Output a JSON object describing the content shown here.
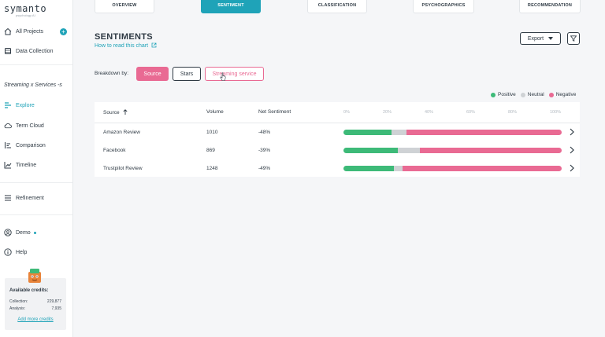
{
  "app": {
    "logo_text": "symanto",
    "logo_sub": "psychology AI"
  },
  "sidebar": {
    "all_projects": "All Projects",
    "data_collection": "Data Collection",
    "project_name": "Streaming x Services -s",
    "items": [
      {
        "label": "Explore",
        "icon": "explore-icon",
        "active": true
      },
      {
        "label": "Term Cloud",
        "icon": "cloud-icon",
        "active": false
      },
      {
        "label": "Comparison",
        "icon": "comparison-icon",
        "active": false
      },
      {
        "label": "Timeline",
        "icon": "timeline-icon",
        "active": false
      },
      {
        "label": "Refinement",
        "icon": "refinement-icon",
        "active": false
      }
    ],
    "user": "Demo",
    "help": "Help",
    "credits": {
      "title": "Available credits:",
      "collection_label": "Collection:",
      "collection_value": "229,877",
      "analysis_label": "Analysis:",
      "analysis_value": "7,935",
      "add_link": "Add more credits"
    }
  },
  "tabs": [
    {
      "label": "OVERVIEW",
      "active": false
    },
    {
      "label": "SENTIMENT",
      "active": true
    },
    {
      "label": "CLASSIFICATION",
      "active": false
    },
    {
      "label": "PSYCHOGRAPHICS",
      "active": false
    },
    {
      "label": "RECOMMENDATION",
      "active": false
    }
  ],
  "main": {
    "title": "SENTIMENTS",
    "help_link": "How to read this chart",
    "export_label": "Export",
    "breakdown_label": "Breakdown by:",
    "breakdown_options": [
      "Source",
      "Stars",
      "Streaming service"
    ],
    "breakdown_selected": "Source"
  },
  "legend": [
    {
      "label": "Positive",
      "color": "#3dba78"
    },
    {
      "label": "Neutral",
      "color": "#cfd2d5"
    },
    {
      "label": "Negative",
      "color": "#e96a93"
    }
  ],
  "table": {
    "columns": [
      "Source",
      "Volume",
      "Net Sentiment"
    ],
    "scale_ticks": [
      "0%",
      "20%",
      "40%",
      "60%",
      "80%",
      "100%"
    ],
    "rows": [
      {
        "source": "Amazon Review",
        "volume": "1010",
        "net": "-48%",
        "positive": 0.22,
        "neutral": 0.07,
        "negative": 0.71
      },
      {
        "source": "Facebook",
        "volume": "869",
        "net": "-39%",
        "positive": 0.25,
        "neutral": 0.1,
        "negative": 0.65
      },
      {
        "source": "Trustpilot Review",
        "volume": "1248",
        "net": "-49%",
        "positive": 0.23,
        "neutral": 0.04,
        "negative": 0.73
      }
    ]
  }
}
